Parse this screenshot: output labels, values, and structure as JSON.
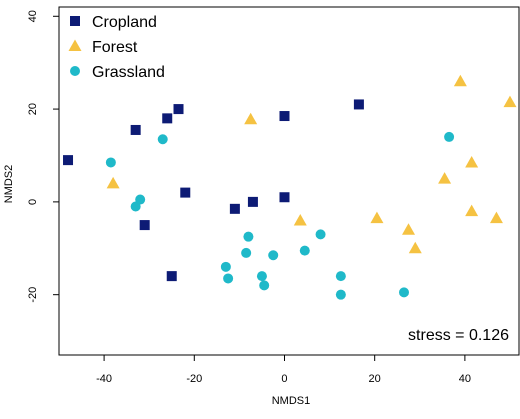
{
  "chart_data": {
    "type": "scatter",
    "xlabel": "NMDS1",
    "ylabel": "NMDS2",
    "xlim": [
      -50,
      52
    ],
    "ylim": [
      -33,
      42
    ],
    "xticks": [
      -40,
      -20,
      0,
      20,
      40
    ],
    "yticks": [
      -20,
      0,
      20,
      40
    ],
    "grid": false,
    "legend_position": "top-left",
    "annotation": "stress = 0.126",
    "series": [
      {
        "name": "Cropland",
        "marker": "square",
        "color": "#0d1b75",
        "points": [
          [
            -48,
            9
          ],
          [
            -33,
            15.5
          ],
          [
            -31,
            -5
          ],
          [
            -26,
            18
          ],
          [
            -23.5,
            20
          ],
          [
            -25,
            -16
          ],
          [
            -22,
            2
          ],
          [
            -11,
            -1.5
          ],
          [
            -7,
            0
          ],
          [
            0,
            18.5
          ],
          [
            0,
            1
          ],
          [
            16.5,
            21
          ]
        ]
      },
      {
        "name": "Forest",
        "marker": "triangle",
        "color": "#f5c242",
        "points": [
          [
            -38,
            4
          ],
          [
            -7.5,
            17.8
          ],
          [
            3.5,
            -4
          ],
          [
            20.5,
            -3.5
          ],
          [
            27.5,
            -6
          ],
          [
            29,
            -10
          ],
          [
            35.5,
            5
          ],
          [
            39,
            26
          ],
          [
            41.5,
            8.5
          ],
          [
            41.5,
            -2
          ],
          [
            47,
            -3.5
          ],
          [
            50,
            21.5
          ]
        ]
      },
      {
        "name": "Grassland",
        "marker": "circle",
        "color": "#1fb9c9",
        "points": [
          [
            -38.5,
            8.5
          ],
          [
            -33,
            -1
          ],
          [
            -32,
            0.5
          ],
          [
            -27,
            13.5
          ],
          [
            -13,
            -14
          ],
          [
            -12.5,
            -16.5
          ],
          [
            -8.5,
            -11
          ],
          [
            -8,
            -7.5
          ],
          [
            -5,
            -16
          ],
          [
            -4.5,
            -18
          ],
          [
            -2.5,
            -11.5
          ],
          [
            4.5,
            -10.5
          ],
          [
            8,
            -7
          ],
          [
            12.5,
            -16
          ],
          [
            12.5,
            -20
          ],
          [
            26.5,
            -19.5
          ],
          [
            36.5,
            14
          ]
        ]
      }
    ]
  }
}
